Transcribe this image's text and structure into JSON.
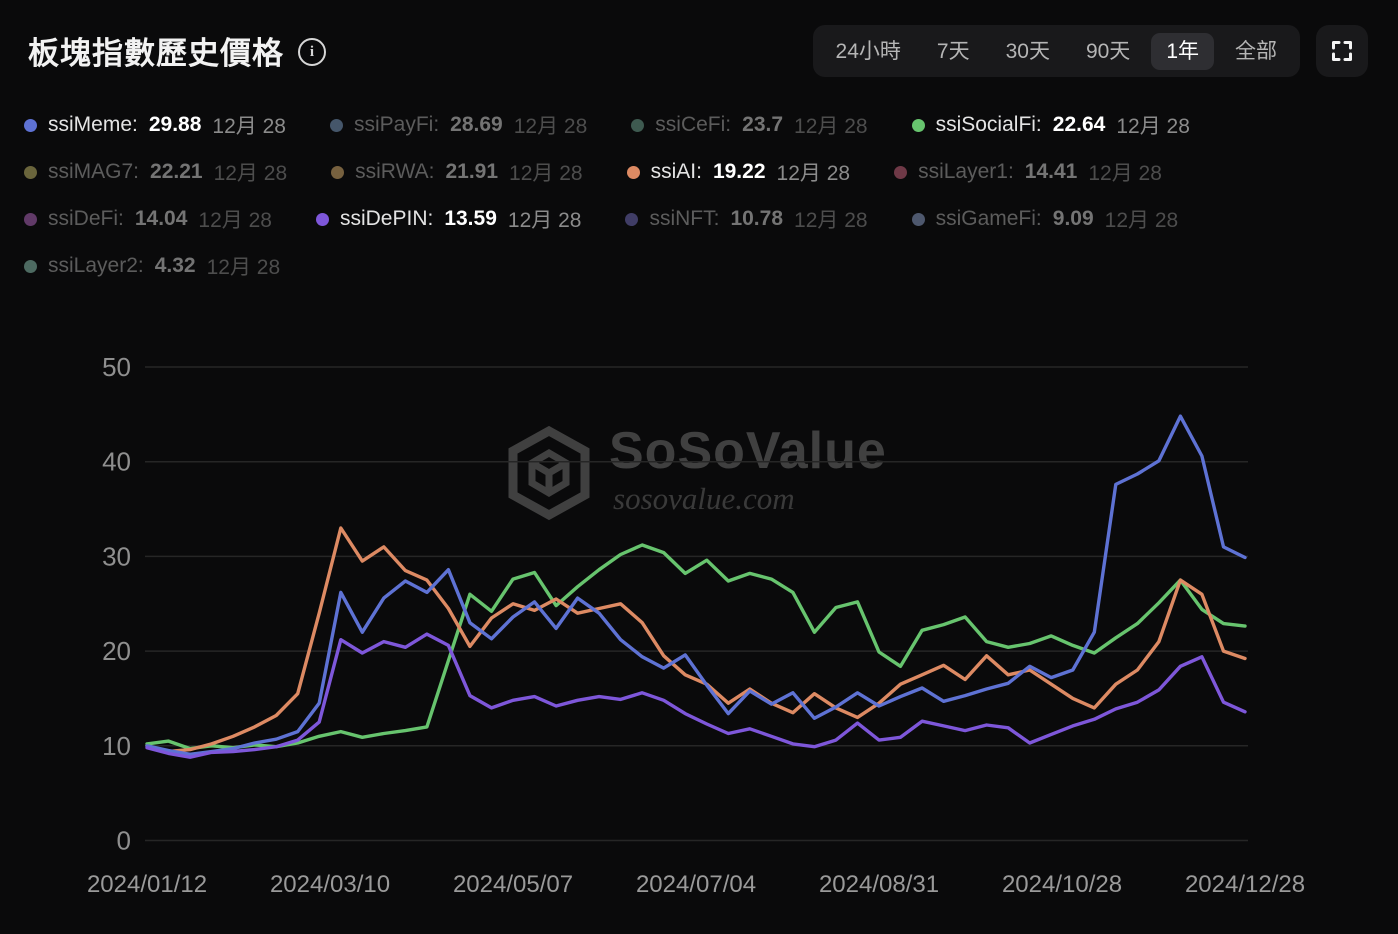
{
  "header": {
    "title": "板塊指數歷史價格",
    "ranges": [
      {
        "label": "24小時",
        "active": false
      },
      {
        "label": "7天",
        "active": false
      },
      {
        "label": "30天",
        "active": false
      },
      {
        "label": "90天",
        "active": false
      },
      {
        "label": "1年",
        "active": true
      },
      {
        "label": "全部",
        "active": false
      }
    ]
  },
  "legend": {
    "items": [
      {
        "name": "ssiMeme",
        "value": "29.88",
        "date": "12月 28",
        "color": "#5e72d4",
        "active": true
      },
      {
        "name": "ssiPayFi",
        "value": "28.69",
        "date": "12月 28",
        "color": "#45566a",
        "active": false
      },
      {
        "name": "ssiCeFi",
        "value": "23.7",
        "date": "12月 28",
        "color": "#3e5a50",
        "active": false
      },
      {
        "name": "ssiSocialFi",
        "value": "22.64",
        "date": "12月 28",
        "color": "#67c46e",
        "active": true
      },
      {
        "name": "ssiMAG7",
        "value": "22.21",
        "date": "12月 28",
        "color": "#6a653c",
        "active": false
      },
      {
        "name": "ssiRWA",
        "value": "21.91",
        "date": "12月 28",
        "color": "#77613f",
        "active": false
      },
      {
        "name": "ssiAI",
        "value": "19.22",
        "date": "12月 28",
        "color": "#dd8a63",
        "active": true
      },
      {
        "name": "ssiLayer1",
        "value": "14.41",
        "date": "12月 28",
        "color": "#6f3947",
        "active": false
      },
      {
        "name": "ssiDeFi",
        "value": "14.04",
        "date": "12月 28",
        "color": "#613a68",
        "active": false
      },
      {
        "name": "ssiDePIN",
        "value": "13.59",
        "date": "12月 28",
        "color": "#7e57da",
        "active": true
      },
      {
        "name": "ssiNFT",
        "value": "10.78",
        "date": "12月 28",
        "color": "#403d66",
        "active": false
      },
      {
        "name": "ssiGameFi",
        "value": "9.09",
        "date": "12月 28",
        "color": "#4e586e",
        "active": false
      },
      {
        "name": "ssiLayer2",
        "value": "4.32",
        "date": "12月 28",
        "color": "#4d6a61",
        "active": false
      }
    ]
  },
  "watermark": {
    "brand": "SoSoValue",
    "domain": "sosovalue.com"
  },
  "chart_data": {
    "type": "line",
    "title": "板塊指數歷史價格",
    "x_tick_labels": [
      "2024/01/12",
      "2024/03/10",
      "2024/05/07",
      "2024/07/04",
      "2024/08/31",
      "2024/10/28",
      "2024/12/28"
    ],
    "y_ticks": [
      0,
      10,
      20,
      30,
      40,
      50
    ],
    "ylim": [
      0,
      50
    ],
    "grid": true,
    "legend_position": "top",
    "series": [
      {
        "name": "ssiSocialFi",
        "color": "#67c46e",
        "values": [
          10.2,
          10.5,
          9.7,
          10.0,
          9.8,
          10.1,
          9.9,
          10.3,
          11.0,
          11.5,
          10.9,
          11.3,
          11.6,
          12.0,
          19.0,
          26.0,
          24.2,
          27.6,
          28.3,
          24.8,
          26.8,
          28.6,
          30.2,
          31.2,
          30.4,
          28.2,
          29.6,
          27.4,
          28.2,
          27.6,
          26.2,
          22.0,
          24.6,
          25.2,
          19.9,
          18.4,
          22.2,
          22.8,
          23.6,
          21.0,
          20.4,
          20.8,
          21.6,
          20.6,
          19.8,
          21.4,
          22.9,
          25.1,
          27.5,
          24.4,
          22.9,
          22.64
        ]
      },
      {
        "name": "ssiAI",
        "color": "#dd8a63",
        "values": [
          10.0,
          9.4,
          9.6,
          10.2,
          11.0,
          12.0,
          13.2,
          15.5,
          24.0,
          33.0,
          29.5,
          31.0,
          28.5,
          27.5,
          24.5,
          20.5,
          23.5,
          25.0,
          24.3,
          25.5,
          24.0,
          24.5,
          25.0,
          23.0,
          19.5,
          17.5,
          16.5,
          14.5,
          16.0,
          14.5,
          13.5,
          15.5,
          14.0,
          13.0,
          14.5,
          16.5,
          17.5,
          18.5,
          17.0,
          19.5,
          17.5,
          18.0,
          16.5,
          15.0,
          14.0,
          16.5,
          18.0,
          21.0,
          27.5,
          26.0,
          20.0,
          19.22
        ]
      },
      {
        "name": "ssiMeme",
        "color": "#5e72d4",
        "values": [
          10.0,
          9.5,
          9.1,
          9.4,
          9.7,
          10.3,
          10.7,
          11.5,
          14.5,
          26.2,
          22.0,
          25.6,
          27.4,
          26.2,
          28.6,
          23.0,
          21.3,
          23.6,
          25.2,
          22.4,
          25.6,
          24.0,
          21.2,
          19.4,
          18.2,
          19.6,
          16.4,
          13.4,
          15.8,
          14.4,
          15.6,
          12.9,
          14.1,
          15.6,
          14.2,
          15.2,
          16.1,
          14.7,
          15.3,
          16.0,
          16.6,
          18.4,
          17.2,
          18.0,
          22.0,
          37.6,
          38.7,
          40.1,
          44.8,
          40.6,
          31.0,
          29.88
        ]
      },
      {
        "name": "ssiDePIN",
        "color": "#7e57da",
        "values": [
          9.8,
          9.2,
          8.8,
          9.3,
          9.4,
          9.6,
          9.9,
          10.6,
          12.5,
          21.2,
          19.8,
          21.0,
          20.4,
          21.8,
          20.6,
          15.3,
          14.0,
          14.8,
          15.2,
          14.2,
          14.8,
          15.2,
          14.9,
          15.6,
          14.8,
          13.4,
          12.3,
          11.3,
          11.8,
          11.0,
          10.2,
          9.9,
          10.6,
          12.4,
          10.6,
          10.9,
          12.6,
          12.1,
          11.6,
          12.2,
          11.9,
          10.3,
          11.2,
          12.1,
          12.8,
          13.9,
          14.6,
          15.9,
          18.4,
          19.4,
          14.6,
          13.59
        ]
      }
    ]
  }
}
